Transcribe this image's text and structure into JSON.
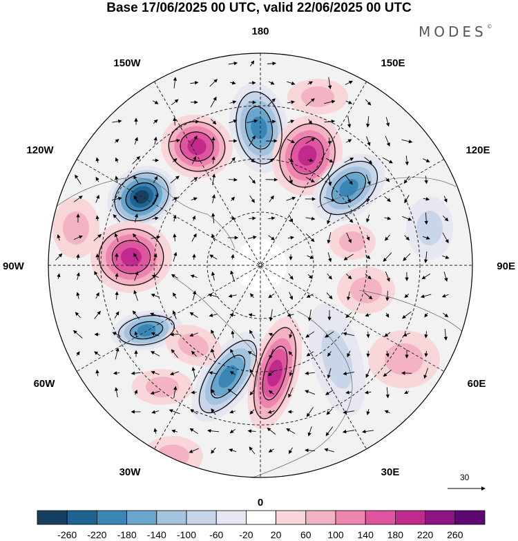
{
  "title": "Base 17/06/2025 00 UTC, valid 22/06/2025 00 UTC",
  "brand": {
    "name": "MODES",
    "mark": "©"
  },
  "map": {
    "projection": "north polar stereographic",
    "longitude_labels": {
      "top": "180",
      "bottom": "0",
      "left": "90W",
      "right": "90E",
      "upper_left": "150W",
      "upper_right": "150E",
      "mid_upper_left": "120W",
      "mid_upper_right": "120E",
      "mid_lower_left": "60W",
      "mid_lower_right": "60E",
      "lower_left": "30W",
      "lower_right": "30E"
    },
    "vector_reference": "30",
    "colors": {
      "neg_max": "#1a4a6e",
      "neutral": "#ffffff",
      "pos_max": "#5a0f6a",
      "land": "#eeeeee"
    }
  },
  "colorbar": {
    "labels": [
      "-260",
      "-220",
      "-180",
      "-140",
      "-100",
      "-60",
      "-20",
      "20",
      "60",
      "100",
      "140",
      "180",
      "220",
      "260"
    ],
    "colors": [
      "#173f5f",
      "#1f6390",
      "#3a86b6",
      "#6aa6cc",
      "#a3c3de",
      "#c9d5e8",
      "#e7e7f2",
      "#ffffff",
      "#f8d6d9",
      "#f4b3c3",
      "#ee85b0",
      "#e0559f",
      "#c02a8c",
      "#8c1584",
      "#5c0a72"
    ]
  }
}
